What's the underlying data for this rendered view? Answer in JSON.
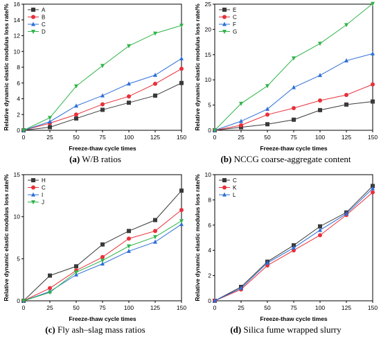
{
  "panels": [
    {
      "caption_letter": "(a)",
      "caption_text": "W/B ratios",
      "chart_data": {
        "type": "line",
        "xlabel": "Freeze-thaw cycle times",
        "ylabel": "Relative dynamic elastic modulus loss rate/%",
        "x": [
          0,
          25,
          50,
          75,
          100,
          125,
          150
        ],
        "xlim": [
          0,
          150
        ],
        "ylim": [
          0,
          16
        ],
        "xticks": [
          0,
          25,
          50,
          75,
          100,
          125,
          150
        ],
        "yticks": [
          0,
          2,
          4,
          6,
          8,
          10,
          12,
          14,
          16
        ],
        "legend_position": "top-left",
        "series": [
          {
            "name": "A",
            "color": "#3a3a3a",
            "marker": "square",
            "values": [
              0,
              0.4,
              1.5,
              2.6,
              3.5,
              4.4,
              6.0
            ]
          },
          {
            "name": "B",
            "color": "#e8303a",
            "marker": "circle",
            "values": [
              0,
              0.9,
              2.0,
              3.3,
              4.3,
              5.9,
              7.8
            ]
          },
          {
            "name": "C",
            "color": "#2e6fd8",
            "marker": "triangle-up",
            "values": [
              0,
              1.1,
              3.1,
              4.4,
              5.9,
              7.0,
              9.1
            ]
          },
          {
            "name": "D",
            "color": "#2fb44a",
            "marker": "triangle-down",
            "values": [
              0,
              1.6,
              5.6,
              8.2,
              10.7,
              12.3,
              13.3
            ]
          }
        ]
      }
    },
    {
      "caption_letter": "(b)",
      "caption_text": "NCCG coarse-aggregate content",
      "chart_data": {
        "type": "line",
        "xlabel": "Freeze-thaw cycle times",
        "ylabel": "Relative dynamic elastic modulus loss rate/%",
        "x": [
          0,
          25,
          50,
          75,
          100,
          125,
          150
        ],
        "xlim": [
          0,
          150
        ],
        "ylim": [
          0,
          25
        ],
        "xticks": [
          0,
          25,
          50,
          75,
          100,
          125,
          150
        ],
        "yticks": [
          0,
          5,
          10,
          15,
          20,
          25
        ],
        "legend_position": "top-left",
        "series": [
          {
            "name": "E",
            "color": "#3a3a3a",
            "marker": "square",
            "values": [
              0,
              0.6,
              1.2,
              2.1,
              4.0,
              5.1,
              5.7
            ]
          },
          {
            "name": "C",
            "color": "#e8303a",
            "marker": "circle",
            "values": [
              0,
              1.0,
              3.1,
              4.4,
              5.9,
              7.0,
              9.1
            ]
          },
          {
            "name": "F",
            "color": "#2e6fd8",
            "marker": "triangle-up",
            "values": [
              0,
              1.8,
              4.2,
              8.5,
              10.9,
              13.8,
              15.2
            ]
          },
          {
            "name": "G",
            "color": "#2fb44a",
            "marker": "triangle-down",
            "values": [
              0,
              5.3,
              8.8,
              14.3,
              17.2,
              20.9,
              25.1
            ]
          }
        ]
      }
    },
    {
      "caption_letter": "(c)",
      "caption_text": "Fly ash–slag mass ratios",
      "chart_data": {
        "type": "line",
        "xlabel": "Freeze-thaw cycle times",
        "ylabel": "Relative dynamic elastic modulus loss rate/%",
        "x": [
          0,
          25,
          50,
          75,
          100,
          125,
          150
        ],
        "xlim": [
          0,
          150
        ],
        "ylim": [
          0,
          15
        ],
        "xticks": [
          0,
          25,
          50,
          75,
          100,
          125,
          150
        ],
        "yticks": [
          0,
          5,
          10,
          15
        ],
        "legend_position": "top-left",
        "series": [
          {
            "name": "H",
            "color": "#3a3a3a",
            "marker": "square",
            "values": [
              0,
              3.0,
              4.1,
              6.7,
              8.3,
              9.6,
              13.1
            ]
          },
          {
            "name": "C",
            "color": "#e8303a",
            "marker": "circle",
            "values": [
              0,
              1.5,
              3.6,
              5.2,
              7.4,
              8.3,
              10.8
            ]
          },
          {
            "name": "I",
            "color": "#2e6fd8",
            "marker": "triangle-up",
            "values": [
              0,
              1.1,
              3.1,
              4.4,
              5.9,
              7.0,
              9.1
            ]
          },
          {
            "name": "J",
            "color": "#2fb44a",
            "marker": "triangle-down",
            "values": [
              0,
              1.0,
              3.4,
              4.8,
              6.5,
              7.6,
              9.5
            ]
          }
        ]
      }
    },
    {
      "caption_letter": "(d)",
      "caption_text": "Silica fume wrapped slurry",
      "chart_data": {
        "type": "line",
        "xlabel": "Freeze-thaw cycle times",
        "ylabel": "Relative dynamic elastic modulus loss rate/%",
        "x": [
          0,
          25,
          50,
          75,
          100,
          125,
          150
        ],
        "xlim": [
          0,
          150
        ],
        "ylim": [
          0,
          10
        ],
        "xticks": [
          0,
          25,
          50,
          75,
          100,
          125,
          150
        ],
        "yticks": [
          0,
          2,
          4,
          6,
          8,
          10
        ],
        "legend_position": "top-left",
        "series": [
          {
            "name": "C",
            "color": "#3a3a3a",
            "marker": "square",
            "values": [
              0,
              1.1,
              3.1,
              4.4,
              5.9,
              7.0,
              9.1
            ]
          },
          {
            "name": "K",
            "color": "#e8303a",
            "marker": "circle",
            "values": [
              0,
              0.9,
              2.8,
              4.0,
              5.2,
              6.8,
              8.6
            ]
          },
          {
            "name": "L",
            "color": "#2e6fd8",
            "marker": "triangle-up",
            "values": [
              0,
              1.0,
              3.0,
              4.2,
              5.6,
              6.9,
              8.9
            ]
          }
        ]
      }
    }
  ]
}
